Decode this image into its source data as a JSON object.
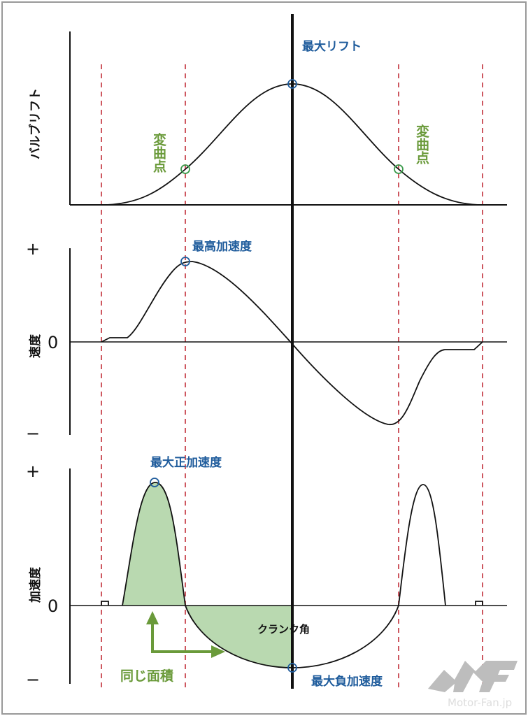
{
  "labels": {
    "max_lift": "最大リフト",
    "inflection_left": "変曲点",
    "inflection_right": "変曲点",
    "valve_lift_axis": "バルブリフト",
    "max_velocity": "最高加速度",
    "velocity_axis": "速度",
    "max_positive_accel": "最大正加速度",
    "accel_axis": "加速度",
    "crank_angle": "クランク角",
    "same_area": "同じ面積",
    "max_negative_accel": "最大負加速度"
  },
  "ticks": {
    "velocity": {
      "plus": "+",
      "zero": "0",
      "minus": "−"
    },
    "accel": {
      "plus": "+",
      "zero": "0",
      "minus": "−"
    }
  },
  "logo": {
    "text": "Motor-Fan.jp"
  },
  "colors": {
    "blue": "#1f5c9c",
    "green": "#6a9a3a",
    "red_dash": "#c8454f",
    "fill": "#b9d9b0"
  }
}
